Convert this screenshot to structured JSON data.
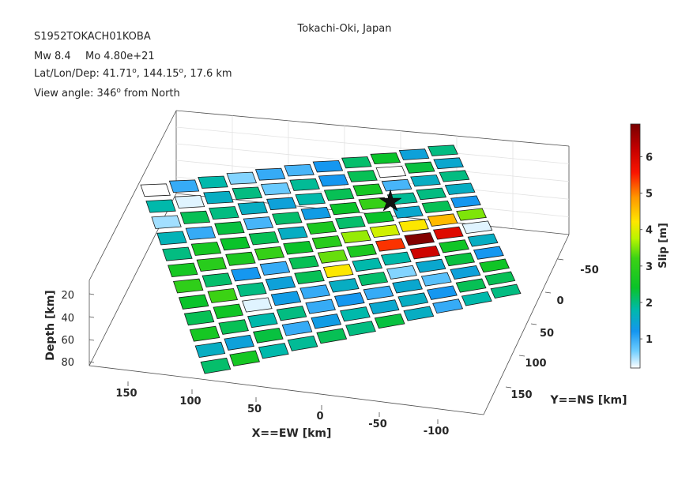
{
  "chart_data": {
    "type": "heatmap",
    "title": "Tokachi-Oki, Japan",
    "info": {
      "event_id": "S1952TOKACH01KOBA",
      "mw_label": "Mw 8.4",
      "mo_label": "Mo 4.80e+21",
      "latlondep_label": "Lat/Lon/Dep: 41.71",
      "lat": "41.71",
      "lon": "144.15",
      "dep_label": ", 17.6 km",
      "degree_mark": "o",
      "view_label": "View angle: 346",
      "view_suffix": " from North"
    },
    "xlabel": "X==EW [km]",
    "ylabel": "Y==NS [km]",
    "zlabel": "Depth [km]",
    "colorbar_label": "Slip [m]",
    "x_ticks": [
      "150",
      "100",
      "50",
      "0",
      "-50",
      "-100"
    ],
    "y_ticks": [
      "-50",
      "0",
      "50",
      "100",
      "150"
    ],
    "z_ticks": [
      "20",
      "40",
      "60",
      "80"
    ],
    "colorbar_ticks": [
      "1",
      "2",
      "3",
      "4",
      "5",
      "6"
    ],
    "colorbar_range": [
      0.2,
      6.9
    ],
    "colormap": "jet-like",
    "grid": true,
    "rows": 12,
    "cols": 11,
    "slip": [
      [
        0.2,
        1.0,
        1.8,
        0.6,
        1.0,
        0.9,
        1.2,
        2.1,
        2.4,
        1.4,
        2.0
      ],
      [
        1.8,
        0.3,
        1.6,
        2.0,
        0.7,
        1.9,
        1.2,
        2.2,
        0.2,
        2.3,
        1.5
      ],
      [
        0.5,
        2.2,
        2.0,
        1.6,
        1.4,
        1.8,
        2.2,
        2.6,
        0.9,
        1.6,
        2.0
      ],
      [
        1.7,
        1.0,
        2.3,
        0.9,
        2.1,
        1.3,
        2.4,
        3.1,
        1.9,
        2.0,
        1.6
      ],
      [
        2.0,
        2.6,
        2.4,
        2.2,
        1.6,
        2.7,
        2.1,
        2.4,
        1.5,
        2.2,
        1.2
      ],
      [
        2.6,
        2.9,
        2.7,
        3.1,
        2.4,
        2.9,
        3.6,
        3.9,
        4.2,
        4.6,
        3.5
      ],
      [
        3.0,
        2.1,
        1.2,
        1.0,
        2.2,
        3.4,
        2.7,
        5.4,
        6.8,
        5.9,
        0.3
      ],
      [
        2.4,
        3.2,
        2.0,
        1.4,
        2.2,
        4.2,
        1.8,
        1.8,
        6.1,
        2.5,
        1.6
      ],
      [
        2.2,
        2.5,
        0.3,
        1.3,
        1.0,
        1.6,
        2.1,
        0.6,
        1.5,
        2.3,
        1.2
      ],
      [
        2.6,
        2.2,
        1.8,
        2.0,
        1.0,
        1.2,
        1.0,
        1.5,
        0.8,
        1.4,
        2.5
      ],
      [
        1.6,
        1.4,
        2.3,
        1.0,
        1.3,
        1.8,
        1.5,
        1.6,
        1.2,
        2.2,
        2.2
      ],
      [
        2.1,
        2.6,
        1.8,
        1.9,
        2.2,
        2.0,
        2.3,
        1.6,
        1.0,
        1.8,
        2.0
      ]
    ]
  }
}
